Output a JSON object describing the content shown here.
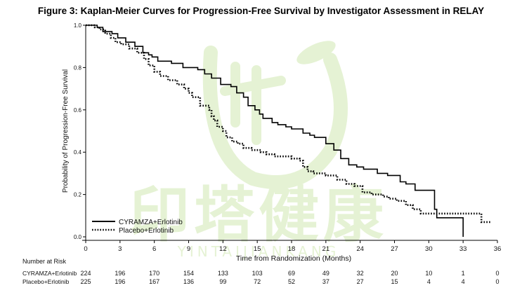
{
  "title": "Figure 3: Kaplan-Meier Curves for Progression-Free Survival by Investigator Assessment in RELAY",
  "watermark": {
    "text": "印塔健康",
    "subtext": "YINTAIJIANKANG",
    "color": "#8cc63f"
  },
  "chart_data": {
    "type": "line",
    "subtype": "step",
    "xlabel": "Time from Randomization (Months)",
    "ylabel": "Probability of Progression-Free Survival",
    "xlim": [
      0,
      36
    ],
    "ylim": [
      0,
      1.0
    ],
    "x_ticks": [
      0,
      3,
      6,
      9,
      12,
      15,
      18,
      21,
      24,
      27,
      30,
      33,
      36
    ],
    "y_ticks": [
      0.0,
      0.2,
      0.4,
      0.6,
      0.8,
      1.0
    ],
    "y_tick_labels": [
      "0.0",
      "0.2",
      "0.4",
      "0.6",
      "0.8",
      "1.0"
    ],
    "grid": false,
    "legend_position": "bottom-left",
    "series": [
      {
        "name": "CYRAMZA+Erlotinib",
        "style": "solid",
        "color": "#000000",
        "points": [
          [
            0,
            1.0
          ],
          [
            1.0,
            0.99
          ],
          [
            1.5,
            0.97
          ],
          [
            2.3,
            0.96
          ],
          [
            2.8,
            0.94
          ],
          [
            3.5,
            0.92
          ],
          [
            4.3,
            0.9
          ],
          [
            5.0,
            0.87
          ],
          [
            5.5,
            0.86
          ],
          [
            5.8,
            0.85
          ],
          [
            6.3,
            0.83
          ],
          [
            7.5,
            0.82
          ],
          [
            8.5,
            0.8
          ],
          [
            9.8,
            0.79
          ],
          [
            10.4,
            0.77
          ],
          [
            11.0,
            0.75
          ],
          [
            11.8,
            0.72
          ],
          [
            12.0,
            0.72
          ],
          [
            12.7,
            0.71
          ],
          [
            13.2,
            0.68
          ],
          [
            13.8,
            0.66
          ],
          [
            14.2,
            0.62
          ],
          [
            14.8,
            0.6
          ],
          [
            15.2,
            0.58
          ],
          [
            15.5,
            0.56
          ],
          [
            16.3,
            0.54
          ],
          [
            16.8,
            0.53
          ],
          [
            17.5,
            0.52
          ],
          [
            18.0,
            0.51
          ],
          [
            19.0,
            0.49
          ],
          [
            19.6,
            0.48
          ],
          [
            20.0,
            0.47
          ],
          [
            21.0,
            0.44
          ],
          [
            21.7,
            0.41
          ],
          [
            22.3,
            0.37
          ],
          [
            23.0,
            0.34
          ],
          [
            23.7,
            0.33
          ],
          [
            24.3,
            0.32
          ],
          [
            25.5,
            0.3
          ],
          [
            26.4,
            0.29
          ],
          [
            27.5,
            0.26
          ],
          [
            28.0,
            0.25
          ],
          [
            28.8,
            0.22
          ],
          [
            30.5,
            0.13
          ],
          [
            30.7,
            0.09
          ],
          [
            33.0,
            0.09
          ],
          [
            33.0,
            0.0
          ]
        ]
      },
      {
        "name": "Placebo+Erlotinib",
        "style": "dotted",
        "color": "#000000",
        "points": [
          [
            0,
            1.0
          ],
          [
            0.8,
            0.99
          ],
          [
            1.2,
            0.98
          ],
          [
            1.7,
            0.96
          ],
          [
            2.2,
            0.94
          ],
          [
            2.6,
            0.92
          ],
          [
            3.1,
            0.91
          ],
          [
            3.8,
            0.89
          ],
          [
            4.5,
            0.87
          ],
          [
            5.1,
            0.84
          ],
          [
            5.5,
            0.81
          ],
          [
            6.0,
            0.78
          ],
          [
            6.5,
            0.76
          ],
          [
            7.2,
            0.74
          ],
          [
            8.0,
            0.72
          ],
          [
            8.6,
            0.7
          ],
          [
            9.0,
            0.68
          ],
          [
            9.3,
            0.66
          ],
          [
            10.0,
            0.62
          ],
          [
            10.8,
            0.6
          ],
          [
            11.0,
            0.57
          ],
          [
            11.2,
            0.55
          ],
          [
            11.5,
            0.52
          ],
          [
            12.0,
            0.5
          ],
          [
            12.3,
            0.47
          ],
          [
            12.8,
            0.45
          ],
          [
            13.3,
            0.44
          ],
          [
            13.8,
            0.42
          ],
          [
            14.5,
            0.41
          ],
          [
            15.3,
            0.4
          ],
          [
            15.8,
            0.39
          ],
          [
            16.5,
            0.38
          ],
          [
            18.0,
            0.37
          ],
          [
            18.7,
            0.36
          ],
          [
            19.0,
            0.33
          ],
          [
            19.4,
            0.31
          ],
          [
            19.9,
            0.3
          ],
          [
            21.0,
            0.29
          ],
          [
            22.0,
            0.27
          ],
          [
            22.8,
            0.25
          ],
          [
            23.5,
            0.24
          ],
          [
            24.2,
            0.21
          ],
          [
            25.0,
            0.2
          ],
          [
            26.0,
            0.19
          ],
          [
            26.5,
            0.18
          ],
          [
            27.2,
            0.17
          ],
          [
            28.0,
            0.15
          ],
          [
            28.6,
            0.13
          ],
          [
            29.3,
            0.11
          ],
          [
            34.6,
            0.11
          ],
          [
            34.6,
            0.07
          ],
          [
            35.5,
            0.07
          ]
        ]
      }
    ],
    "number_at_risk": {
      "title": "Number at Risk",
      "times": [
        0,
        3,
        6,
        9,
        12,
        15,
        18,
        21,
        24,
        27,
        30,
        33,
        36
      ],
      "rows": [
        {
          "label": "CYRAMZA+Erlotinib",
          "values": [
            "224",
            "196",
            "170",
            "154",
            "133",
            "103",
            "69",
            "49",
            "32",
            "20",
            "10",
            "1",
            "0"
          ]
        },
        {
          "label": "Placebo+Erlotinib",
          "values": [
            "225",
            "196",
            "167",
            "136",
            "99",
            "72",
            "52",
            "37",
            "27",
            "15",
            "4",
            "4",
            "0"
          ]
        }
      ]
    }
  }
}
